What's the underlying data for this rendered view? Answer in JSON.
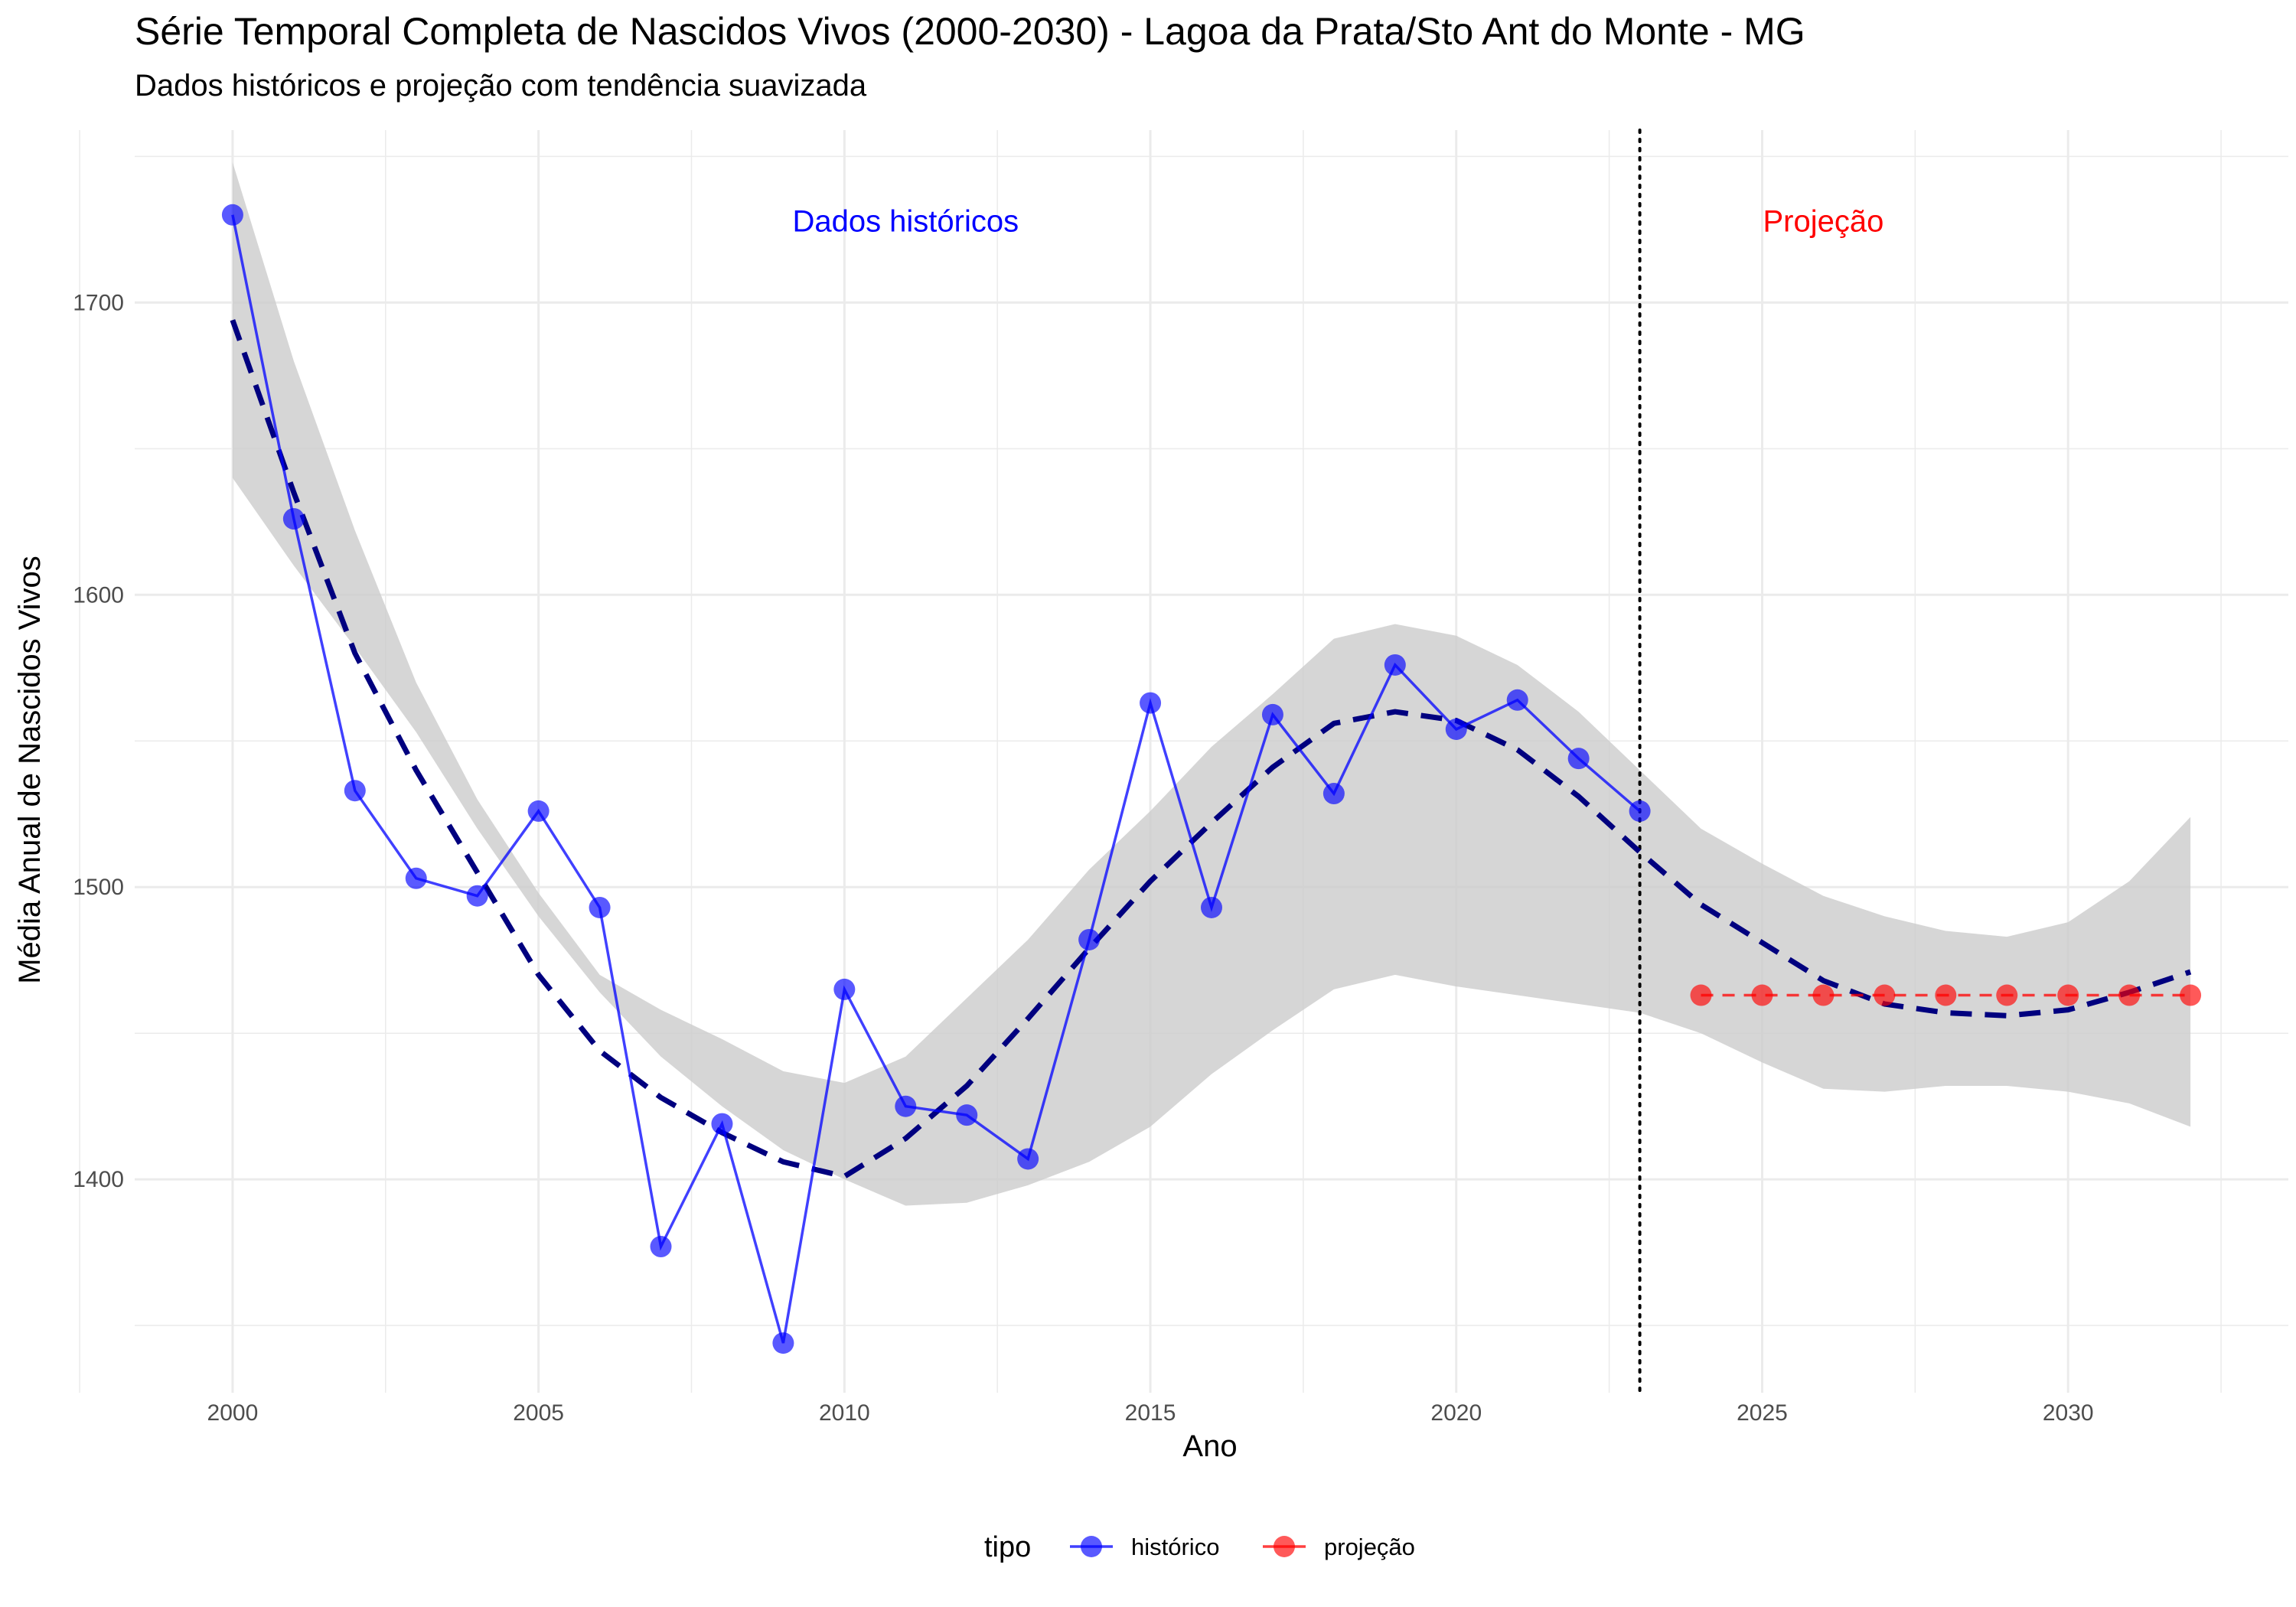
{
  "chart_data": {
    "type": "line",
    "title": "Série Temporal Completa de Nascidos Vivos (2000-2030) -  Lagoa da Prata/Sto Ant do Monte - MG",
    "subtitle": "Dados históricos e projeção com tendência suavizada",
    "xlabel": "Ano",
    "ylabel": "Média Anual de Nascidos Vivos",
    "xlim": [
      1998.4,
      2033.6
    ],
    "ylim": [
      1327,
      1759
    ],
    "x_ticks": [
      2000,
      2005,
      2010,
      2015,
      2020,
      2025,
      2030
    ],
    "y_ticks": [
      1400,
      1500,
      1600,
      1700
    ],
    "grid": true,
    "vertical_line": {
      "x": 2023,
      "style": "dotted"
    },
    "annotations": [
      {
        "text": "Dados históricos",
        "x": 2011,
        "y": 1728,
        "color": "#0000ff"
      },
      {
        "text": "Projeção",
        "x": 2026,
        "y": 1728,
        "color": "#ff0000"
      }
    ],
    "legend": {
      "title": "tipo",
      "position": "bottom"
    },
    "series": [
      {
        "name": "histórico",
        "color": "#0000ff",
        "x": [
          2000,
          2001,
          2002,
          2003,
          2004,
          2005,
          2006,
          2007,
          2008,
          2009,
          2010,
          2011,
          2012,
          2013,
          2014,
          2015,
          2016,
          2017,
          2018,
          2019,
          2020,
          2021,
          2022,
          2023
        ],
        "values": [
          1730,
          1626,
          1533,
          1503,
          1497,
          1526,
          1493,
          1377,
          1419,
          1344,
          1465,
          1425,
          1422,
          1407,
          1482,
          1563,
          1493,
          1559,
          1532,
          1576,
          1554,
          1564,
          1544,
          1526
        ]
      },
      {
        "name": "projeção",
        "color": "#ff0000",
        "x": [
          2024,
          2025,
          2026,
          2027,
          2028,
          2029,
          2030,
          2031,
          2032
        ],
        "values": [
          1463,
          1463,
          1463,
          1463,
          1463,
          1463,
          1463,
          1463,
          1463
        ]
      }
    ],
    "smooth": {
      "color": "#00007f",
      "x": [
        2000,
        2001,
        2002,
        2003,
        2004,
        2005,
        2006,
        2007,
        2008,
        2009,
        2010,
        2011,
        2012,
        2013,
        2014,
        2015,
        2016,
        2017,
        2018,
        2019,
        2020,
        2021,
        2022,
        2023,
        2024,
        2025,
        2026,
        2027,
        2028,
        2029,
        2030,
        2031,
        2032
      ],
      "fit": [
        1694,
        1635,
        1580,
        1540,
        1505,
        1470,
        1444,
        1428,
        1416,
        1406,
        1401,
        1414,
        1432,
        1455,
        1479,
        1502,
        1522,
        1541,
        1556,
        1560,
        1557,
        1547,
        1531,
        1512,
        1494,
        1481,
        1468,
        1460,
        1457,
        1456,
        1458,
        1464,
        1471
      ],
      "lower": [
        1640,
        1610,
        1582,
        1553,
        1520,
        1490,
        1464,
        1442,
        1425,
        1410,
        1400,
        1391,
        1392,
        1398,
        1406,
        1418,
        1436,
        1451,
        1465,
        1470,
        1466,
        1463,
        1460,
        1457,
        1450,
        1440,
        1431,
        1430,
        1432,
        1432,
        1430,
        1426,
        1418
      ],
      "upper": [
        1748,
        1680,
        1622,
        1570,
        1530,
        1498,
        1470,
        1458,
        1448,
        1437,
        1433,
        1442,
        1462,
        1482,
        1506,
        1526,
        1548,
        1566,
        1585,
        1590,
        1586,
        1576,
        1560,
        1540,
        1520,
        1508,
        1497,
        1490,
        1485,
        1483,
        1488,
        1502,
        1524
      ]
    }
  }
}
